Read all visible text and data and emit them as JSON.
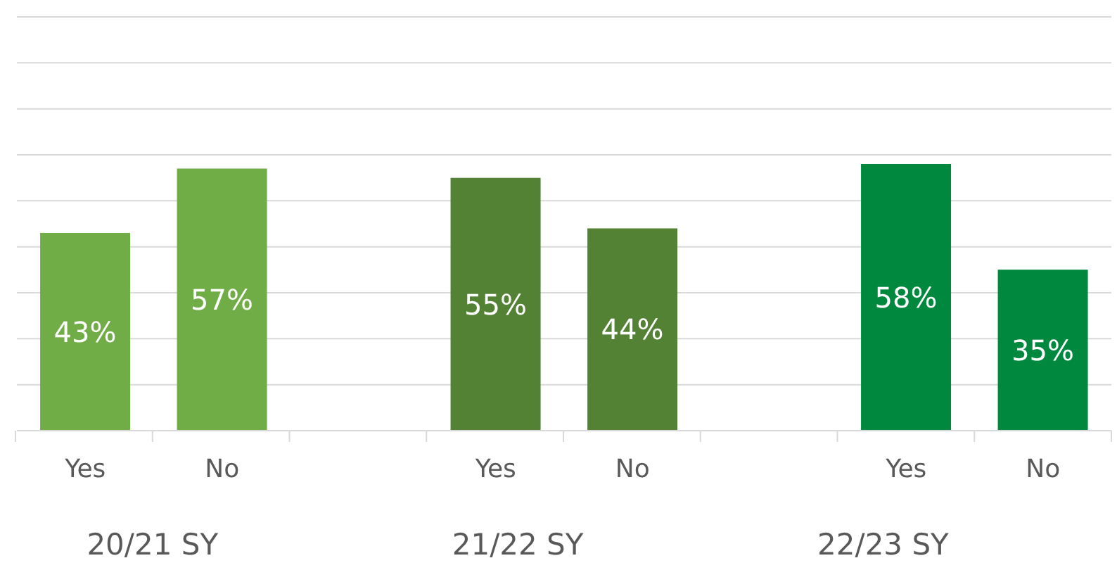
{
  "chart_data": {
    "type": "bar",
    "categories": [
      "Yes",
      "No",
      null,
      "Yes",
      "No",
      null,
      "Yes",
      "No"
    ],
    "values": [
      43,
      57,
      null,
      55,
      44,
      null,
      58,
      35
    ],
    "colors": [
      "#70ad47",
      "#70ad47",
      null,
      "#548235",
      "#548235",
      null,
      "#00883e",
      "#00883e"
    ],
    "value_labels": [
      "43%",
      "57%",
      null,
      "55%",
      "44%",
      null,
      "58%",
      "35%"
    ],
    "ylim": [
      0,
      90
    ],
    "yticks": [
      {
        "value": 0,
        "label": null
      },
      {
        "value": 10,
        "label": null
      },
      {
        "value": 20,
        "label": null
      },
      {
        "value": 30,
        "label": null
      },
      {
        "value": 40,
        "label": null
      },
      {
        "value": 50,
        "label": null
      },
      {
        "value": 60,
        "label": null
      },
      {
        "value": 70,
        "label": null
      },
      {
        "value": 80,
        "label": null
      },
      {
        "value": 90,
        "label": null
      }
    ],
    "tick_labels": "x",
    "grid": "y",
    "annotations": [
      "20/21 SY",
      "21/22 SY",
      "22/23 SY"
    ]
  }
}
